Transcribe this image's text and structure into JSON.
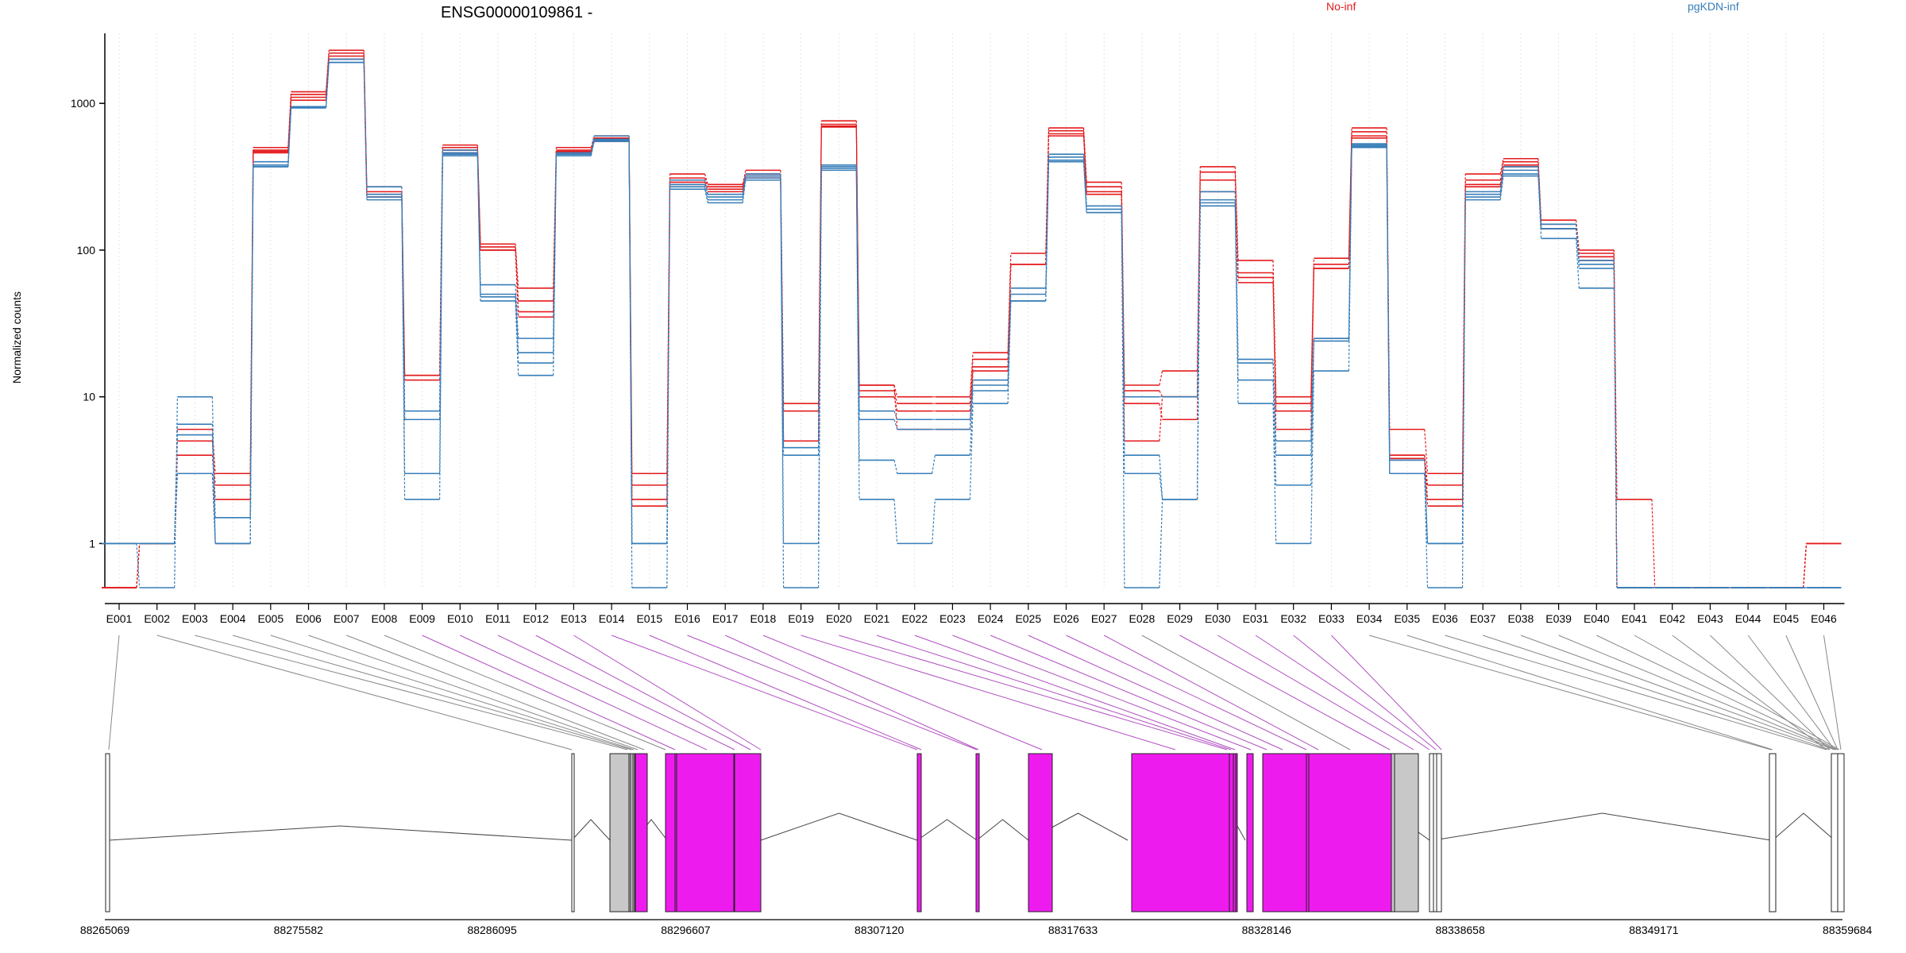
{
  "chart_data": {
    "type": "line",
    "title": "ENSG00000109861 -",
    "ylabel": "Normalized counts",
    "xlabel": "",
    "yscale": "log",
    "ylim": [
      0.5,
      3000
    ],
    "yticks": [
      1,
      10,
      100,
      1000
    ],
    "ytick_labels": [
      "1",
      "10",
      "100",
      "1000"
    ],
    "grid": "vertical dotted lines at each exon",
    "legend": [
      {
        "name": "No-inf",
        "color": "#e41a1c"
      },
      {
        "name": "pgKDN-inf",
        "color": "#377eb8"
      }
    ],
    "categories": [
      "E001",
      "E002",
      "E003",
      "E004",
      "E005",
      "E006",
      "E007",
      "E008",
      "E009",
      "E010",
      "E011",
      "E012",
      "E013",
      "E014",
      "E015",
      "E016",
      "E017",
      "E018",
      "E019",
      "E020",
      "E021",
      "E022",
      "E023",
      "E024",
      "E025",
      "E026",
      "E027",
      "E028",
      "E029",
      "E030",
      "E031",
      "E032",
      "E033",
      "E034",
      "E035",
      "E036",
      "E037",
      "E038",
      "E039",
      "E040",
      "E041",
      "E042",
      "E043",
      "E044",
      "E045",
      "E046"
    ],
    "series": [
      {
        "group": "No-inf",
        "values": [
          0.5,
          1,
          6,
          3,
          500,
          1200,
          2300,
          270,
          14,
          520,
          110,
          55,
          500,
          600,
          3,
          330,
          280,
          350,
          9,
          760,
          12,
          10,
          10,
          20,
          95,
          680,
          290,
          12,
          15,
          370,
          85,
          10,
          88,
          680,
          6,
          3,
          330,
          420,
          160,
          100,
          2,
          0.5,
          0.5,
          0.5,
          0.5,
          1
        ]
      },
      {
        "group": "No-inf",
        "values": [
          0.5,
          1,
          5,
          2.5,
          480,
          1150,
          2200,
          250,
          13,
          500,
          105,
          45,
          480,
          580,
          2.5,
          310,
          270,
          330,
          8,
          720,
          11,
          9,
          9,
          18,
          80,
          650,
          270,
          11,
          10,
          340,
          70,
          9,
          80,
          640,
          4,
          2.5,
          300,
          400,
          150,
          95,
          0.5,
          0.5,
          0.5,
          0.5,
          0.5,
          1
        ]
      },
      {
        "group": "No-inf",
        "values": [
          0.5,
          1,
          4,
          2,
          470,
          1100,
          2100,
          240,
          7,
          480,
          100,
          38,
          470,
          560,
          2,
          290,
          260,
          320,
          5,
          700,
          10,
          8,
          8,
          16,
          80,
          620,
          250,
          9,
          7,
          300,
          65,
          8,
          75,
          600,
          4,
          2,
          280,
          380,
          140,
          90,
          0.5,
          0.5,
          0.5,
          0.5,
          0.5,
          1
        ]
      },
      {
        "group": "No-inf",
        "values": [
          0.5,
          1,
          3,
          1,
          460,
          1050,
          2000,
          230,
          14,
          460,
          100,
          35,
          460,
          550,
          1.8,
          280,
          250,
          310,
          5,
          690,
          12,
          6,
          6,
          15,
          80,
          600,
          240,
          5,
          10,
          250,
          60,
          6,
          75,
          580,
          3.8,
          1.8,
          270,
          370,
          140,
          85,
          0.5,
          0.5,
          0.5,
          0.5,
          0.5,
          1
        ]
      },
      {
        "group": "pgKDN-inf",
        "values": [
          1,
          0.5,
          10,
          1,
          400,
          950,
          2000,
          270,
          8,
          480,
          58,
          25,
          460,
          600,
          1,
          300,
          240,
          330,
          4.5,
          380,
          8,
          7,
          7,
          13,
          55,
          450,
          200,
          10,
          10,
          250,
          18,
          5,
          25,
          530,
          3.7,
          1,
          250,
          370,
          150,
          85,
          0.5,
          0.5,
          0.5,
          0.5,
          0.5,
          0.5
        ]
      },
      {
        "group": "pgKDN-inf",
        "values": [
          1,
          1,
          6.5,
          1.5,
          380,
          950,
          1900,
          240,
          7,
          460,
          50,
          20,
          450,
          570,
          1,
          280,
          230,
          320,
          4,
          370,
          7,
          6,
          6,
          12,
          50,
          430,
          190,
          4,
          2,
          220,
          17,
          4,
          25,
          520,
          3,
          1,
          240,
          350,
          140,
          80,
          0.5,
          0.5,
          0.5,
          0.5,
          0.5,
          0.5
        ]
      },
      {
        "group": "pgKDN-inf",
        "values": [
          1,
          1,
          5.5,
          1,
          370,
          940,
          1900,
          230,
          3,
          450,
          48,
          17,
          450,
          560,
          1,
          270,
          220,
          310,
          1,
          360,
          3.7,
          3,
          4,
          11,
          45,
          410,
          180,
          3,
          2,
          210,
          13,
          2.5,
          24,
          510,
          3,
          1,
          230,
          330,
          140,
          75,
          0.5,
          0.5,
          0.5,
          0.5,
          0.5,
          0.5
        ]
      },
      {
        "group": "pgKDN-inf",
        "values": [
          1,
          1,
          3,
          1,
          370,
          930,
          1900,
          220,
          2,
          440,
          45,
          14,
          440,
          550,
          0.5,
          260,
          210,
          300,
          0.5,
          350,
          2,
          1,
          2,
          9,
          45,
          400,
          180,
          0.5,
          2,
          200,
          9,
          1,
          15,
          500,
          3,
          0.5,
          220,
          320,
          120,
          55,
          0.5,
          0.5,
          0.5,
          0.5,
          0.5,
          0.5
        ]
      }
    ]
  },
  "gene_model": {
    "coordinates": [
      "88265069",
      "88275582",
      "88286095",
      "88296607",
      "88307120",
      "88317633",
      "88328146",
      "88338658",
      "88349171",
      "88359684"
    ]
  },
  "colors": {
    "no_inf": "#e41a1c",
    "pgkdn_inf": "#377eb8",
    "coding_exon": "#ee1bee",
    "noncoding_exon": "#c8c8c8",
    "connector_plain": "#888888",
    "connector_coding": "#b04fc0"
  }
}
